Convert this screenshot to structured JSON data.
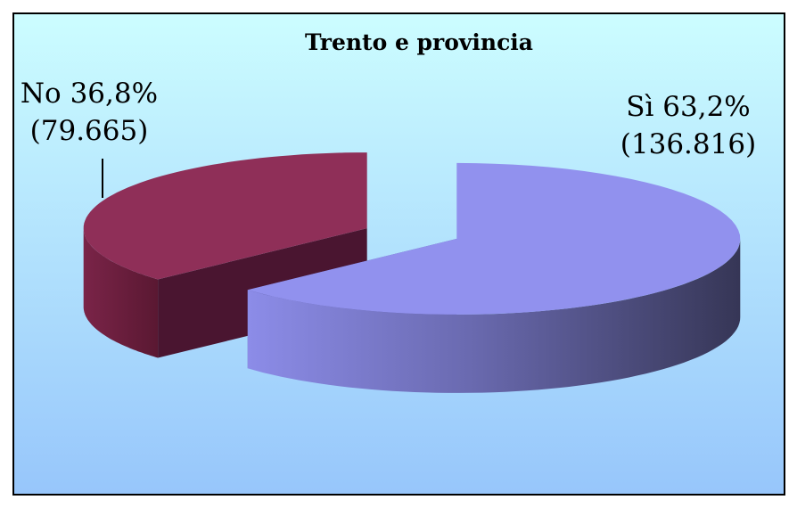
{
  "chart_data": {
    "type": "pie",
    "title": "Trento e provincia",
    "categories": [
      "Sì",
      "No"
    ],
    "values": [
      63.2,
      36.8
    ],
    "value_labels": [
      "63,2%",
      "36,8%"
    ],
    "counts": [
      136816,
      79665
    ],
    "count_labels": [
      "(136.816)",
      "(79.665)"
    ],
    "colors": [
      "#9191ee",
      "#8f2f58"
    ],
    "three_d": true
  }
}
